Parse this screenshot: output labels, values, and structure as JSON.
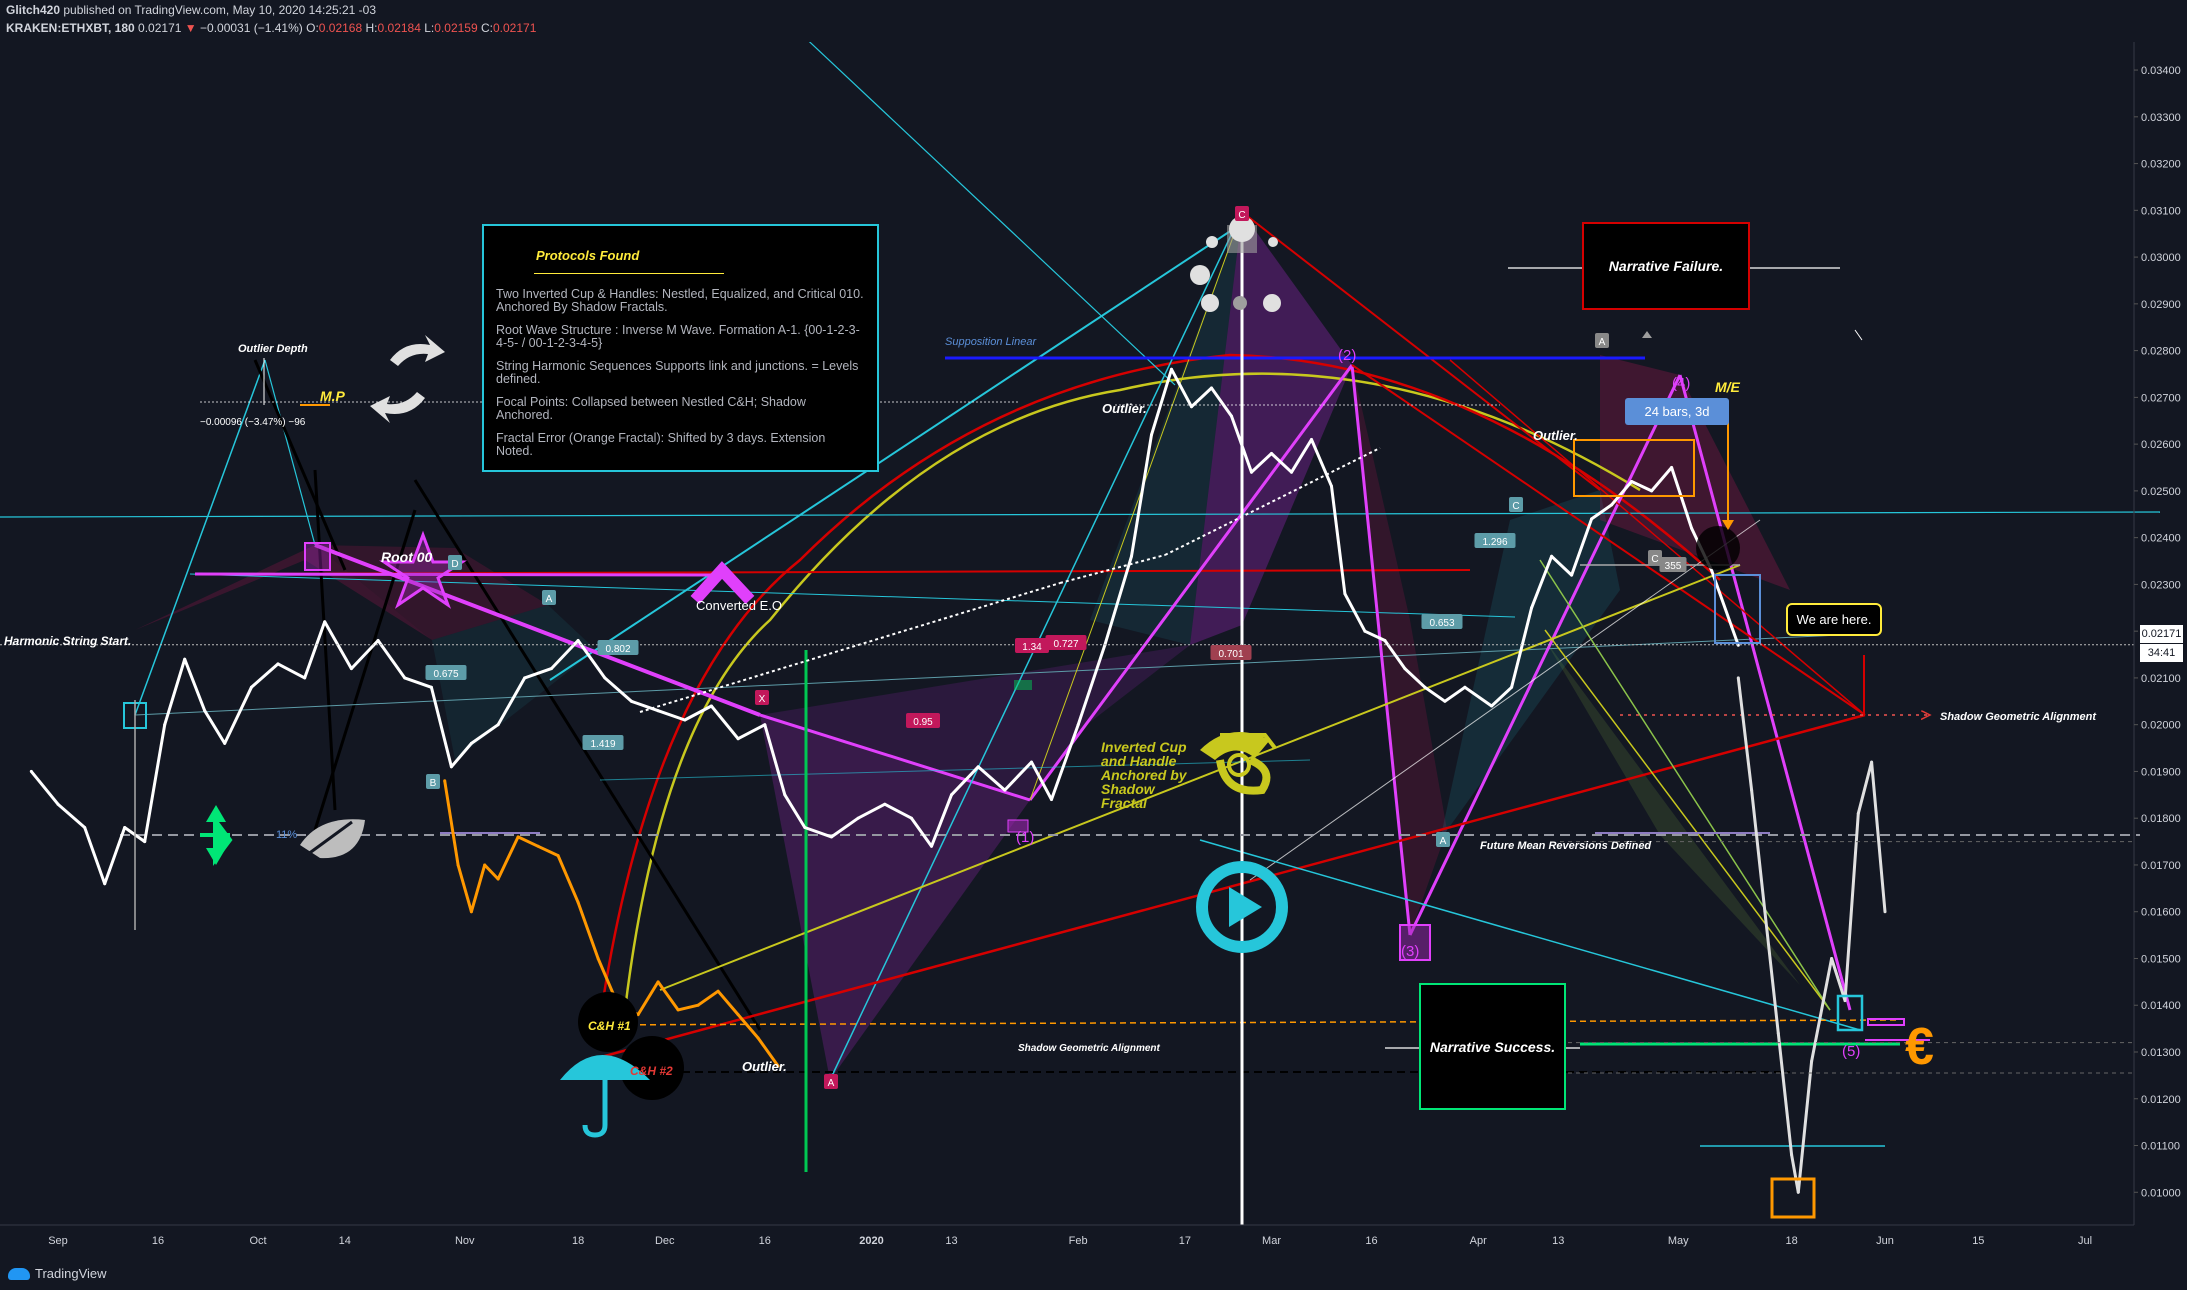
{
  "header": {
    "author": "Glitch420",
    "published": " published on TradingView.com, May 10, 2020 14:25:21 -03",
    "symbol": "KRAKEN:ETHXBT, 180",
    "last": "0.02171",
    "arrow": "▼",
    "change": "−0.00031 (−1.41%)",
    "o_label": "O:",
    "o_val": "0.02168",
    "h_label": "H:",
    "h_val": "0.02184",
    "l_label": "L:",
    "l_val": "0.02159",
    "c_label": "C:",
    "c_val": "0.02171"
  },
  "footer": {
    "brand": "TradingView",
    "icon": "tradingview-cloud-icon"
  },
  "price_axis": {
    "current_price": "0.02171",
    "countdown": "34:41"
  },
  "annotations": {
    "protocols_title": "Protocols Found",
    "protocols_lines": [
      "Two Inverted Cup & Handles: Nestled, Equalized, and Critical 010. Anchored By Shadow Fractals.",
      "Root Wave Structure : Inverse M Wave. Formation A-1. {00-1-2-3-4-5- / 00-1-2-3-4-5}",
      "String Harmonic Sequences Supports link and junctions. = Levels defined.",
      "Focal Points: Collapsed between Nestled C&H; Shadow Anchored.",
      "Fractal Error (Orange Fractal): Shifted by 3 days. Extension Noted."
    ],
    "narrative_failure": "Narrative Failure.",
    "narrative_success": "Narrative Success.",
    "we_are_here": "We are here.",
    "bars_range": "24 bars, 3d",
    "harmonic_start": "Harmonic String Start.",
    "outlier_depth": "Outlier Depth",
    "outlier_measure": "−0.00096 (−3.47%) −96",
    "mp": "M.P",
    "me": "M/E",
    "root": "Root 00",
    "converted": "Converted E.O",
    "supposition": "Supposition Linear",
    "inverted_cup": [
      "Inverted Cup",
      "and Handle",
      "Anchored by",
      "Shadow",
      "Fractal"
    ],
    "outlier_1": "Outlier.",
    "outlier_2": "Outlier.",
    "outlier_3": "Outlier.",
    "shadow_align_right": "Shadow Geometric Alignment",
    "shadow_align_mid": "Shadow Geometric Alignment",
    "future_mean": "Future Mean Reversions Defined",
    "ch1": "C&H #1",
    "ch2": "C&H #2",
    "wave_1": "(1)",
    "wave_2": "(2)",
    "wave_3": "(3)",
    "wave_4": "(4)",
    "wave_5": "(5)",
    "pct_11": "11%",
    "euro": "€"
  },
  "pattern_labels": [
    {
      "t": "D",
      "c": "#5d9ca8"
    },
    {
      "t": "A",
      "c": "#5d9ca8"
    },
    {
      "t": "B",
      "c": "#5d9ca8"
    },
    {
      "t": "0.675",
      "c": "#5d9ca8"
    },
    {
      "t": "1.419",
      "c": "#5d9ca8"
    },
    {
      "t": "0.802",
      "c": "#5d9ca8"
    },
    {
      "t": "X",
      "c": "#c2185b"
    },
    {
      "t": "0.95",
      "c": "#c2185b"
    },
    {
      "t": "1.34",
      "c": "#c2185b"
    },
    {
      "t": "0.727",
      "c": "#c2185b"
    },
    {
      "t": "A",
      "c": "#c2185b"
    },
    {
      "t": "C",
      "c": "#c2185b"
    },
    {
      "t": "0.701",
      "c": "#a04050"
    },
    {
      "t": "1.296",
      "c": "#5d9ca8"
    },
    {
      "t": "0.653",
      "c": "#5d9ca8"
    },
    {
      "t": "C",
      "c": "#5d9ca8"
    },
    {
      "t": "A",
      "c": "#5d9ca8"
    },
    {
      "t": "A",
      "c": "#888888"
    },
    {
      "t": "C",
      "c": "#888888"
    },
    {
      "t": "355",
      "c": "#888888"
    }
  ],
  "colors": {
    "background": "#131722",
    "price_line": "#ffffff",
    "orange_fractal": "#ff9800",
    "cyan": "#26c6da",
    "magenta": "#e040fb",
    "red": "#e53935",
    "yellow": "#c8c81e"
  },
  "chart_data": {
    "type": "line",
    "title": "KRAKEN:ETHXBT, 180",
    "x_tick_labels": [
      "Sep",
      "16",
      "Oct",
      "14",
      "Nov",
      "18",
      "Dec",
      "16",
      "2020",
      "13",
      "Feb",
      "17",
      "Mar",
      "16",
      "Apr",
      "13",
      "May",
      "18",
      "Jun",
      "15",
      "Jul"
    ],
    "y_tick_labels": [
      "0.03400",
      "0.03300",
      "0.03200",
      "0.03100",
      "0.03000",
      "0.02900",
      "0.02800",
      "0.02700",
      "0.02600",
      "0.02500",
      "0.02400",
      "0.02300",
      "0.02200",
      "0.02100",
      "0.02000",
      "0.01900",
      "0.01800",
      "0.01700",
      "0.01600",
      "0.01500",
      "0.01400",
      "0.01300",
      "0.01200",
      "0.01100",
      "0.01000"
    ],
    "ylim": [
      0.0093,
      0.0346
    ],
    "series": [
      {
        "values": [
          [
            "2019-08-28",
            0.019
          ],
          [
            "2019-09-01",
            0.0183
          ],
          [
            "2019-09-05",
            0.0178
          ],
          [
            "2019-09-08",
            0.0166
          ],
          [
            "2019-09-11",
            0.0178
          ],
          [
            "2019-09-14",
            0.0175
          ],
          [
            "2019-09-17",
            0.02
          ],
          [
            "2019-09-20",
            0.0214
          ],
          [
            "2019-09-23",
            0.0203
          ],
          [
            "2019-09-26",
            0.0196
          ],
          [
            "2019-09-30",
            0.0208
          ],
          [
            "2019-10-04",
            0.0213
          ],
          [
            "2019-10-08",
            0.021
          ],
          [
            "2019-10-11",
            0.0222
          ],
          [
            "2019-10-15",
            0.0212
          ],
          [
            "2019-10-19",
            0.0218
          ],
          [
            "2019-10-23",
            0.021
          ],
          [
            "2019-10-27",
            0.0208
          ],
          [
            "2019-10-30",
            0.0191
          ],
          [
            "2019-11-02",
            0.0196
          ],
          [
            "2019-11-06",
            0.02
          ],
          [
            "2019-11-10",
            0.021
          ],
          [
            "2019-11-14",
            0.0212
          ],
          [
            "2019-11-18",
            0.0218
          ],
          [
            "2019-11-22",
            0.021
          ],
          [
            "2019-11-26",
            0.0205
          ],
          [
            "2019-11-30",
            0.0203
          ],
          [
            "2019-12-04",
            0.0201
          ],
          [
            "2019-12-08",
            0.0204
          ],
          [
            "2019-12-12",
            0.0197
          ],
          [
            "2019-12-16",
            0.02
          ],
          [
            "2019-12-19",
            0.0185
          ],
          [
            "2019-12-22",
            0.0178
          ],
          [
            "2019-12-26",
            0.0176
          ],
          [
            "2019-12-30",
            0.018
          ],
          [
            "2020-01-03",
            0.0183
          ],
          [
            "2020-01-07",
            0.018
          ],
          [
            "2020-01-10",
            0.0174
          ],
          [
            "2020-01-13",
            0.0185
          ],
          [
            "2020-01-17",
            0.0191
          ],
          [
            "2020-01-21",
            0.0186
          ],
          [
            "2020-01-25",
            0.0192
          ],
          [
            "2020-01-28",
            0.0184
          ],
          [
            "2020-02-01",
            0.02
          ],
          [
            "2020-02-05",
            0.0217
          ],
          [
            "2020-02-09",
            0.0236
          ],
          [
            "2020-02-12",
            0.0262
          ],
          [
            "2020-02-15",
            0.0276
          ],
          [
            "2020-02-18",
            0.0268
          ],
          [
            "2020-02-21",
            0.0272
          ],
          [
            "2020-02-24",
            0.0266
          ],
          [
            "2020-02-27",
            0.0254
          ],
          [
            "2020-03-01",
            0.0258
          ],
          [
            "2020-03-04",
            0.0254
          ],
          [
            "2020-03-07",
            0.0261
          ],
          [
            "2020-03-10",
            0.0251
          ],
          [
            "2020-03-12",
            0.0228
          ],
          [
            "2020-03-15",
            0.022
          ],
          [
            "2020-03-18",
            0.0218
          ],
          [
            "2020-03-21",
            0.0212
          ],
          [
            "2020-03-24",
            0.0208
          ],
          [
            "2020-03-27",
            0.0205
          ],
          [
            "2020-03-30",
            0.0208
          ],
          [
            "2020-04-03",
            0.0204
          ],
          [
            "2020-04-06",
            0.0208
          ],
          [
            "2020-04-09",
            0.0225
          ],
          [
            "2020-04-12",
            0.0236
          ],
          [
            "2020-04-15",
            0.0232
          ],
          [
            "2020-04-18",
            0.0244
          ],
          [
            "2020-04-21",
            0.0247
          ],
          [
            "2020-04-24",
            0.0252
          ],
          [
            "2020-04-27",
            0.025
          ],
          [
            "2020-04-30",
            0.0255
          ],
          [
            "2020-05-03",
            0.0242
          ],
          [
            "2020-05-06",
            0.0233
          ],
          [
            "2020-05-09",
            0.0221
          ],
          [
            "2020-05-10",
            0.0217
          ]
        ]
      },
      {
        "name": "Orange Fractal",
        "values": [
          [
            "2019-10-29",
            0.0188
          ],
          [
            "2019-10-31",
            0.017
          ],
          [
            "2019-11-02",
            0.016
          ],
          [
            "2019-11-04",
            0.017
          ],
          [
            "2019-11-06",
            0.0167
          ],
          [
            "2019-11-09",
            0.0176
          ],
          [
            "2019-11-12",
            0.0174
          ],
          [
            "2019-11-15",
            0.0172
          ],
          [
            "2019-11-18",
            0.0162
          ],
          [
            "2019-11-21",
            0.015
          ],
          [
            "2019-11-24",
            0.014
          ],
          [
            "2019-11-27",
            0.0138
          ],
          [
            "2019-11-30",
            0.0145
          ],
          [
            "2019-12-03",
            0.0139
          ],
          [
            "2019-12-06",
            0.014
          ],
          [
            "2019-12-09",
            0.0143
          ],
          [
            "2019-12-12",
            0.0138
          ],
          [
            "2019-12-15",
            0.0133
          ],
          [
            "2019-12-18",
            0.0127
          ]
        ]
      },
      {
        "name": "Projection",
        "values": [
          [
            "2020-05-10",
            0.021
          ],
          [
            "2020-05-12",
            0.0186
          ],
          [
            "2020-05-14",
            0.016
          ],
          [
            "2020-05-16",
            0.0134
          ],
          [
            "2020-05-18",
            0.0108
          ],
          [
            "2020-05-19",
            0.01
          ],
          [
            "2020-05-21",
            0.0128
          ],
          [
            "2020-05-24",
            0.015
          ],
          [
            "2020-05-26",
            0.0141
          ],
          [
            "2020-05-28",
            0.0181
          ],
          [
            "2020-05-30",
            0.0192
          ],
          [
            "2020-06-01",
            0.016
          ]
        ]
      }
    ],
    "horizontal_levels": [
      0.02171,
      0.02,
      0.0175,
      0.0132,
      0.01255
    ],
    "grid": false,
    "legend": "none"
  }
}
